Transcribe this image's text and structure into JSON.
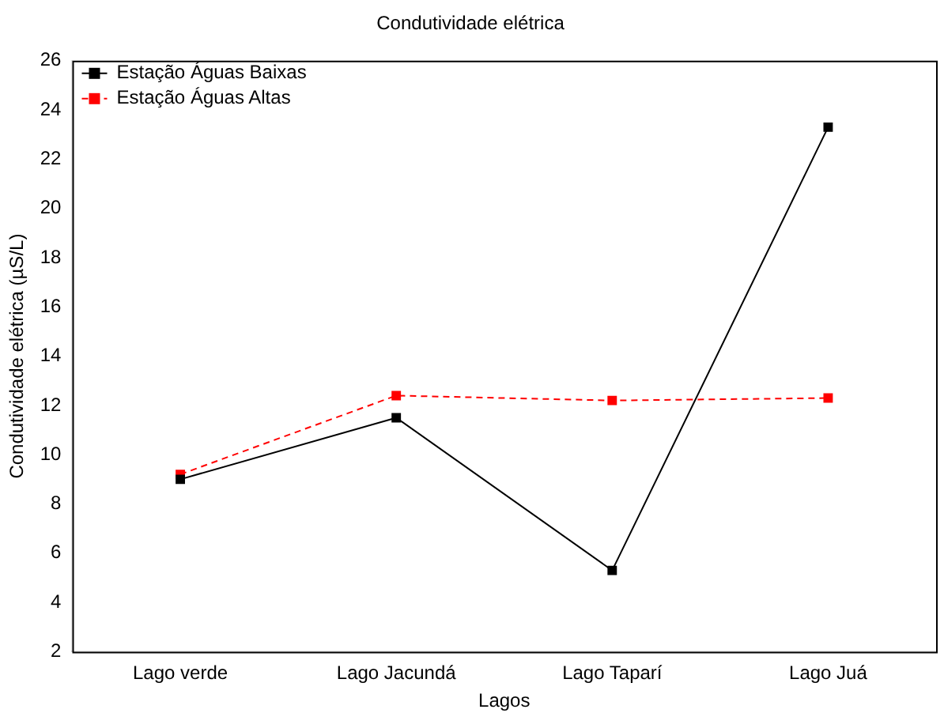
{
  "chart_data": {
    "type": "line",
    "title": "Condutividade elétrica",
    "xlabel": "Lagos",
    "ylabel": "Condutividade elétrica (µS/L)",
    "categories": [
      "Lago verde",
      "Lago Jacundá",
      "Lago Taparí",
      "Lago Juá"
    ],
    "series": [
      {
        "name": "Estação Águas Baixas",
        "color": "#000000",
        "values": [
          9.0,
          11.5,
          5.3,
          23.3
        ],
        "line_style": "solid"
      },
      {
        "name": "Estação Águas Altas",
        "color": "#ff0000",
        "values": [
          9.2,
          12.4,
          12.2,
          12.3
        ],
        "line_style": "dashed"
      }
    ],
    "ylim": [
      2,
      26
    ],
    "yticks": [
      2,
      4,
      6,
      8,
      10,
      12,
      14,
      16,
      18,
      20,
      22,
      24,
      26
    ],
    "grid": false,
    "legend": "top left",
    "marker": "square"
  }
}
